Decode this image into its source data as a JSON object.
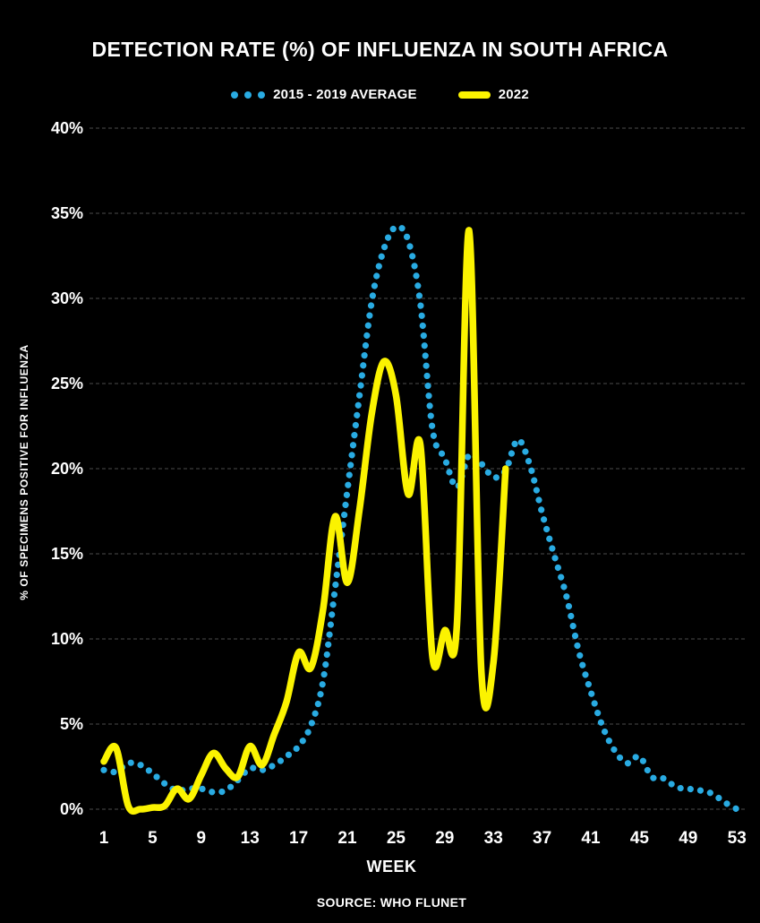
{
  "chart_data": {
    "type": "line",
    "title": "DETECTION RATE (%) OF INFLUENZA IN SOUTH AFRICA",
    "xlabel": "WEEK",
    "ylabel": "% OF SPECIMENS POSITIVE FOR INFLUENZA",
    "source": "SOURCE: WHO FLUNET",
    "background": "#000000",
    "text_color": "#FFFFFF",
    "grid_color": "#4D4D4D",
    "grid": "horizontal dashed",
    "legend_position": "top center",
    "ylim": [
      0,
      40
    ],
    "yticks": [
      0,
      5,
      10,
      15,
      20,
      25,
      30,
      35,
      40
    ],
    "y_tick_suffix": "%",
    "xticks": [
      1,
      5,
      9,
      13,
      17,
      21,
      25,
      29,
      33,
      37,
      41,
      45,
      49,
      53
    ],
    "x": [
      1,
      2,
      3,
      4,
      5,
      6,
      7,
      8,
      9,
      10,
      11,
      12,
      13,
      14,
      15,
      16,
      17,
      18,
      19,
      20,
      21,
      22,
      23,
      24,
      25,
      26,
      27,
      28,
      29,
      30,
      31,
      32,
      33,
      34,
      35,
      36,
      37,
      38,
      39,
      40,
      41,
      42,
      43,
      44,
      45,
      46,
      47,
      48,
      49,
      50,
      51,
      52,
      53
    ],
    "series": [
      {
        "name": "2015 - 2019 AVERAGE",
        "color": "#29ABE2",
        "line_style": "dotted",
        "values": [
          2.3,
          2.2,
          2.7,
          2.6,
          2.1,
          1.5,
          1.1,
          1.2,
          1.2,
          1.0,
          1.1,
          1.7,
          2.4,
          2.3,
          2.6,
          3.1,
          3.7,
          4.9,
          7.5,
          13.0,
          18.7,
          24.3,
          29.8,
          32.9,
          34.2,
          33.4,
          29.7,
          22.3,
          20.6,
          18.9,
          20.8,
          20.3,
          19.5,
          19.9,
          21.7,
          20.2,
          17.4,
          14.9,
          12.5,
          9.3,
          6.9,
          4.8,
          3.4,
          2.7,
          3.1,
          1.9,
          1.8,
          1.3,
          1.2,
          1.1,
          0.9,
          0.4,
          0.0
        ]
      },
      {
        "name": "2022",
        "color": "#FBF300",
        "line_style": "solid",
        "values": [
          2.8,
          3.6,
          0.2,
          0.0,
          0.1,
          0.2,
          1.2,
          0.6,
          2.0,
          3.3,
          2.4,
          1.9,
          3.7,
          2.6,
          4.4,
          6.3,
          9.2,
          8.3,
          11.7,
          17.2,
          13.3,
          17.6,
          23.2,
          26.3,
          24.3,
          18.5,
          21.4,
          8.9,
          10.5,
          10.8,
          34.0,
          8.2,
          8.6,
          20.0
        ]
      }
    ]
  }
}
